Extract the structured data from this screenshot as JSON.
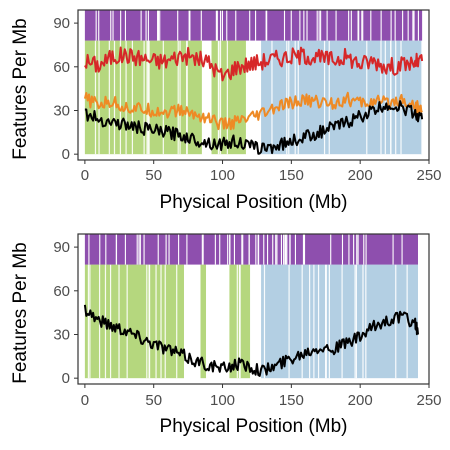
{
  "chart_data": [
    {
      "type": "line",
      "xlabel": "Physical Position (Mb)",
      "ylabel": "Features Per Mb",
      "xlim": [
        -5,
        250
      ],
      "ylim": [
        -4,
        99
      ],
      "xticks": [
        0,
        50,
        100,
        150,
        200,
        250
      ],
      "yticks": [
        0,
        30,
        60,
        90
      ],
      "grid": false,
      "legend": "none",
      "chromosome_length_mb": 245,
      "background_bands": [
        {
          "from": 0,
          "to": 85,
          "color": "#b5d77e"
        },
        {
          "from": 85,
          "to": 92,
          "color": "#ffffff"
        },
        {
          "from": 92,
          "to": 117,
          "color": "#b5d77e"
        },
        {
          "from": 117,
          "to": 128,
          "color": "#ffffff"
        },
        {
          "from": 128,
          "to": 245,
          "color": "#b3cfe3"
        }
      ],
      "marker_strip": {
        "y_from": 78,
        "y_to": 99,
        "color": "#8e4fae"
      },
      "series": [
        {
          "color": "#d62728",
          "x": [
            0,
            10,
            20,
            30,
            40,
            50,
            60,
            70,
            80,
            90,
            100,
            110,
            120,
            130,
            140,
            150,
            160,
            170,
            180,
            190,
            200,
            210,
            220,
            230,
            240,
            245
          ],
          "y": [
            64,
            61,
            67,
            68,
            66,
            64,
            64,
            68,
            66,
            63,
            53,
            60,
            62,
            64,
            66,
            67,
            68,
            66,
            65,
            67,
            62,
            64,
            60,
            61,
            63,
            64
          ]
        },
        {
          "color": "#ee8a25",
          "x": [
            0,
            10,
            20,
            30,
            40,
            50,
            60,
            70,
            80,
            90,
            100,
            110,
            120,
            130,
            140,
            150,
            160,
            170,
            180,
            190,
            200,
            210,
            220,
            230,
            240,
            245
          ],
          "y": [
            38,
            34,
            36,
            32,
            31,
            30,
            29,
            30,
            27,
            25,
            20,
            22,
            24,
            28,
            32,
            35,
            37,
            36,
            35,
            38,
            35,
            36,
            35,
            38,
            33,
            30
          ]
        },
        {
          "color": "#000000",
          "x": [
            0,
            10,
            20,
            30,
            40,
            50,
            60,
            70,
            80,
            90,
            100,
            110,
            120,
            130,
            140,
            150,
            160,
            170,
            180,
            190,
            200,
            210,
            220,
            230,
            240,
            245
          ],
          "y": [
            28,
            24,
            22,
            20,
            18,
            16,
            15,
            13,
            10,
            8,
            7,
            9,
            5,
            4,
            6,
            9,
            12,
            15,
            18,
            22,
            26,
            30,
            34,
            32,
            28,
            24
          ]
        }
      ]
    },
    {
      "type": "line",
      "xlabel": "Physical Position (Mb)",
      "ylabel": "Features Per Mb",
      "xlim": [
        -5,
        250
      ],
      "ylim": [
        -4,
        99
      ],
      "xticks": [
        0,
        50,
        100,
        150,
        200,
        250
      ],
      "yticks": [
        0,
        30,
        60,
        90
      ],
      "grid": false,
      "legend": "none",
      "chromosome_length_mb": 242,
      "background_bands": [
        {
          "from": 0,
          "to": 72,
          "color": "#b5d77e"
        },
        {
          "from": 72,
          "to": 84,
          "color": "#ffffff"
        },
        {
          "from": 84,
          "to": 88,
          "color": "#b5d77e"
        },
        {
          "from": 88,
          "to": 105,
          "color": "#ffffff"
        },
        {
          "from": 105,
          "to": 120,
          "color": "#b5d77e"
        },
        {
          "from": 120,
          "to": 128,
          "color": "#ffffff"
        },
        {
          "from": 128,
          "to": 242,
          "color": "#b3cfe3"
        }
      ],
      "marker_strip": {
        "y_from": 78,
        "y_to": 99,
        "color": "#8e4fae"
      },
      "series": [
        {
          "color": "#000000",
          "x": [
            0,
            10,
            20,
            30,
            40,
            50,
            60,
            70,
            80,
            90,
            100,
            110,
            120,
            130,
            140,
            150,
            160,
            170,
            180,
            190,
            200,
            210,
            220,
            230,
            240,
            242
          ],
          "y": [
            48,
            40,
            36,
            33,
            28,
            24,
            20,
            16,
            12,
            9,
            6,
            10,
            8,
            5,
            9,
            14,
            18,
            22,
            20,
            24,
            28,
            35,
            40,
            42,
            38,
            30
          ]
        }
      ]
    }
  ]
}
